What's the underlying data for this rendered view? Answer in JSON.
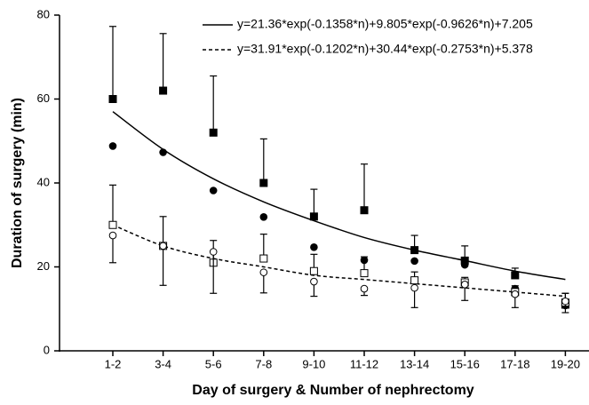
{
  "chart_data": {
    "type": "line-scatter",
    "y_label": "Duration of surgery (min)",
    "x_label": "Day of surgery & Number of nephrectomy",
    "categories": [
      "1-2",
      "3-4",
      "5-6",
      "7-8",
      "9-10",
      "11-12",
      "13-14",
      "15-16",
      "17-18",
      "19-20"
    ],
    "ylim": [
      0,
      80
    ],
    "yticks": [
      0,
      20,
      40,
      60,
      80
    ],
    "fits": [
      {
        "name": "y=21.36*exp(-0.1358*n)+9.805*exp(-0.9626*n)+7.205",
        "dash": false,
        "color": "#000000",
        "values": [
          57,
          48,
          41,
          35.5,
          31,
          27,
          24,
          21.5,
          19,
          17
        ]
      },
      {
        "name": "y=31.91*exp(-0.1202*n)+30.44*exp(-0.2753*n)+5.378",
        "dash": true,
        "color": "#000000",
        "values": [
          30,
          25,
          22,
          20,
          18,
          17,
          16,
          15,
          14,
          13
        ]
      }
    ],
    "series": [
      {
        "marker": "square",
        "filled": true,
        "error_direction": "up",
        "values": [
          60,
          62,
          52,
          40,
          32,
          33.5,
          24,
          21.5,
          18,
          11
        ],
        "errors": [
          17.3,
          13.6,
          13.5,
          10.5,
          6.5,
          11,
          3.5,
          3.5,
          1.7,
          2.7
        ]
      },
      {
        "marker": "circle",
        "filled": true,
        "error_direction": "none",
        "values": [
          48.8,
          47.3,
          38.2,
          31.9,
          24.7,
          21.6,
          21.4,
          20.5,
          14.8,
          10.8
        ]
      },
      {
        "marker": "square",
        "filled": false,
        "error_direction": "up",
        "values": [
          30,
          25,
          21,
          22,
          19,
          18.5,
          16.8,
          16.3,
          14,
          11.5
        ],
        "errors": [
          9.5,
          7,
          5.3,
          5.8,
          4,
          3.9,
          2,
          1.2,
          1.5,
          2.2
        ]
      },
      {
        "marker": "circle",
        "filled": false,
        "error_direction": "down",
        "values": [
          27.5,
          25,
          23.6,
          18.7,
          16.5,
          14.8,
          15,
          15.8,
          13.5,
          11.8
        ],
        "errors": [
          6.5,
          9.4,
          9.9,
          4.9,
          3.5,
          1.6,
          4.7,
          3.8,
          3.2,
          2.7
        ]
      }
    ]
  }
}
